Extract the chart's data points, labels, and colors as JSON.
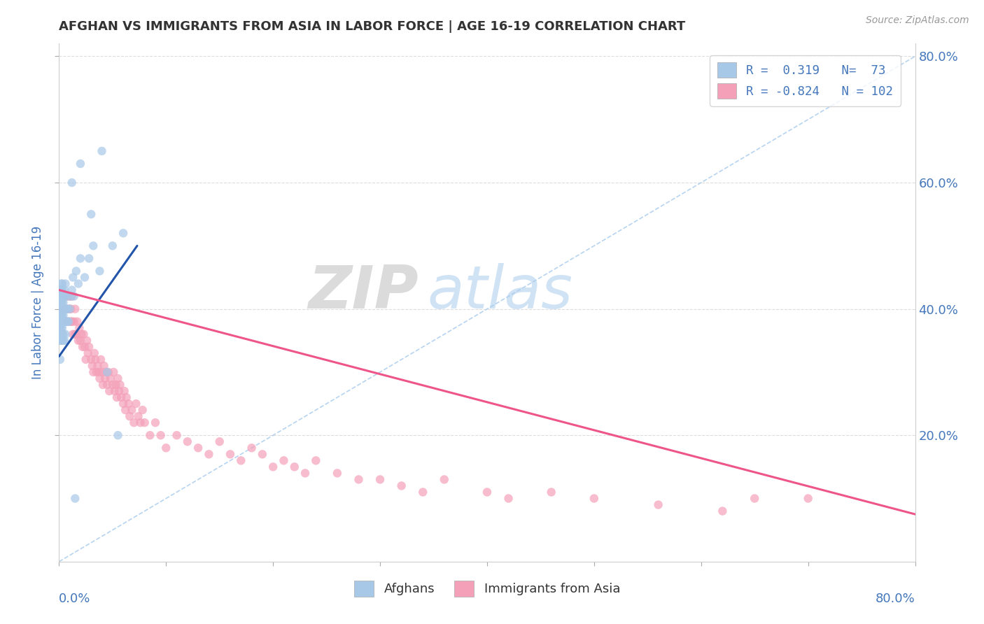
{
  "title": "AFGHAN VS IMMIGRANTS FROM ASIA IN LABOR FORCE | AGE 16-19 CORRELATION CHART",
  "source_text": "Source: ZipAtlas.com",
  "ylabel": "In Labor Force | Age 16-19",
  "watermark_zip": "ZIP",
  "watermark_atlas": "atlas",
  "legend_R1": "0.319",
  "legend_N1": "73",
  "legend_R2": "-0.824",
  "legend_N2": "102",
  "blue_scatter_color": "#a8c8e8",
  "pink_scatter_color": "#f4a0b8",
  "blue_line_color": "#2255aa",
  "pink_line_color": "#ee5588",
  "diag_line_color": "#aaccee",
  "title_color": "#333333",
  "axis_color": "#4477bb",
  "legend_text_color": "#4477bb",
  "grid_color": "#dddddd",
  "background_color": "#ffffff",
  "xmin": 0.0,
  "xmax": 0.8,
  "ymin": 0.0,
  "ymax": 0.82,
  "ytick_vals": [
    0.2,
    0.4,
    0.6,
    0.8
  ],
  "ytick_labels": [
    "20.0%",
    "40.0%",
    "60.0%",
    "80.0%"
  ],
  "blue_trend_x0": 0.0,
  "blue_trend_y0": 0.325,
  "blue_trend_x1": 0.073,
  "blue_trend_y1": 0.5,
  "pink_trend_x0": 0.0,
  "pink_trend_y0": 0.43,
  "pink_trend_x1": 0.8,
  "pink_trend_y1": 0.075,
  "afg_x": [
    0.001,
    0.001,
    0.001,
    0.001,
    0.001,
    0.001,
    0.001,
    0.001,
    0.001,
    0.001,
    0.002,
    0.002,
    0.002,
    0.002,
    0.002,
    0.002,
    0.002,
    0.002,
    0.002,
    0.002,
    0.003,
    0.003,
    0.003,
    0.003,
    0.003,
    0.003,
    0.003,
    0.003,
    0.003,
    0.003,
    0.004,
    0.004,
    0.004,
    0.004,
    0.004,
    0.004,
    0.004,
    0.005,
    0.005,
    0.005,
    0.005,
    0.005,
    0.006,
    0.006,
    0.006,
    0.006,
    0.007,
    0.007,
    0.007,
    0.008,
    0.008,
    0.009,
    0.01,
    0.011,
    0.012,
    0.013,
    0.014,
    0.016,
    0.018,
    0.02,
    0.024,
    0.028,
    0.032,
    0.038,
    0.045,
    0.05,
    0.055,
    0.06,
    0.012,
    0.02,
    0.03,
    0.04,
    0.015
  ],
  "afg_y": [
    0.38,
    0.4,
    0.42,
    0.35,
    0.43,
    0.36,
    0.32,
    0.37,
    0.41,
    0.39,
    0.38,
    0.4,
    0.36,
    0.42,
    0.44,
    0.35,
    0.39,
    0.41,
    0.37,
    0.43,
    0.38,
    0.4,
    0.42,
    0.35,
    0.36,
    0.39,
    0.41,
    0.44,
    0.37,
    0.43,
    0.38,
    0.4,
    0.36,
    0.42,
    0.41,
    0.39,
    0.35,
    0.38,
    0.4,
    0.42,
    0.35,
    0.43,
    0.38,
    0.4,
    0.36,
    0.44,
    0.38,
    0.4,
    0.42,
    0.38,
    0.4,
    0.38,
    0.4,
    0.42,
    0.43,
    0.45,
    0.42,
    0.46,
    0.44,
    0.48,
    0.45,
    0.48,
    0.5,
    0.46,
    0.3,
    0.5,
    0.2,
    0.52,
    0.6,
    0.63,
    0.55,
    0.65,
    0.1
  ],
  "asia_x": [
    0.004,
    0.006,
    0.007,
    0.008,
    0.008,
    0.009,
    0.01,
    0.01,
    0.011,
    0.011,
    0.012,
    0.012,
    0.013,
    0.014,
    0.015,
    0.015,
    0.016,
    0.017,
    0.018,
    0.019,
    0.02,
    0.021,
    0.022,
    0.023,
    0.024,
    0.025,
    0.026,
    0.027,
    0.028,
    0.03,
    0.031,
    0.032,
    0.033,
    0.034,
    0.035,
    0.036,
    0.037,
    0.038,
    0.039,
    0.04,
    0.041,
    0.042,
    0.043,
    0.044,
    0.045,
    0.046,
    0.047,
    0.048,
    0.05,
    0.051,
    0.052,
    0.053,
    0.054,
    0.055,
    0.056,
    0.057,
    0.058,
    0.06,
    0.061,
    0.062,
    0.063,
    0.065,
    0.066,
    0.068,
    0.07,
    0.072,
    0.074,
    0.076,
    0.078,
    0.08,
    0.085,
    0.09,
    0.095,
    0.1,
    0.11,
    0.12,
    0.13,
    0.14,
    0.15,
    0.16,
    0.17,
    0.18,
    0.19,
    0.2,
    0.21,
    0.22,
    0.23,
    0.24,
    0.26,
    0.28,
    0.3,
    0.32,
    0.34,
    0.36,
    0.4,
    0.42,
    0.46,
    0.5,
    0.56,
    0.62,
    0.65,
    0.7
  ],
  "asia_y": [
    0.4,
    0.42,
    0.38,
    0.4,
    0.42,
    0.38,
    0.4,
    0.42,
    0.38,
    0.4,
    0.38,
    0.42,
    0.36,
    0.38,
    0.36,
    0.4,
    0.36,
    0.38,
    0.35,
    0.37,
    0.35,
    0.36,
    0.34,
    0.36,
    0.34,
    0.32,
    0.35,
    0.33,
    0.34,
    0.32,
    0.31,
    0.3,
    0.33,
    0.32,
    0.3,
    0.31,
    0.3,
    0.29,
    0.32,
    0.3,
    0.28,
    0.31,
    0.29,
    0.3,
    0.28,
    0.3,
    0.27,
    0.29,
    0.28,
    0.3,
    0.27,
    0.28,
    0.26,
    0.29,
    0.27,
    0.28,
    0.26,
    0.25,
    0.27,
    0.24,
    0.26,
    0.25,
    0.23,
    0.24,
    0.22,
    0.25,
    0.23,
    0.22,
    0.24,
    0.22,
    0.2,
    0.22,
    0.2,
    0.18,
    0.2,
    0.19,
    0.18,
    0.17,
    0.19,
    0.17,
    0.16,
    0.18,
    0.17,
    0.15,
    0.16,
    0.15,
    0.14,
    0.16,
    0.14,
    0.13,
    0.13,
    0.12,
    0.11,
    0.13,
    0.11,
    0.1,
    0.11,
    0.1,
    0.09,
    0.08,
    0.1,
    0.1
  ]
}
